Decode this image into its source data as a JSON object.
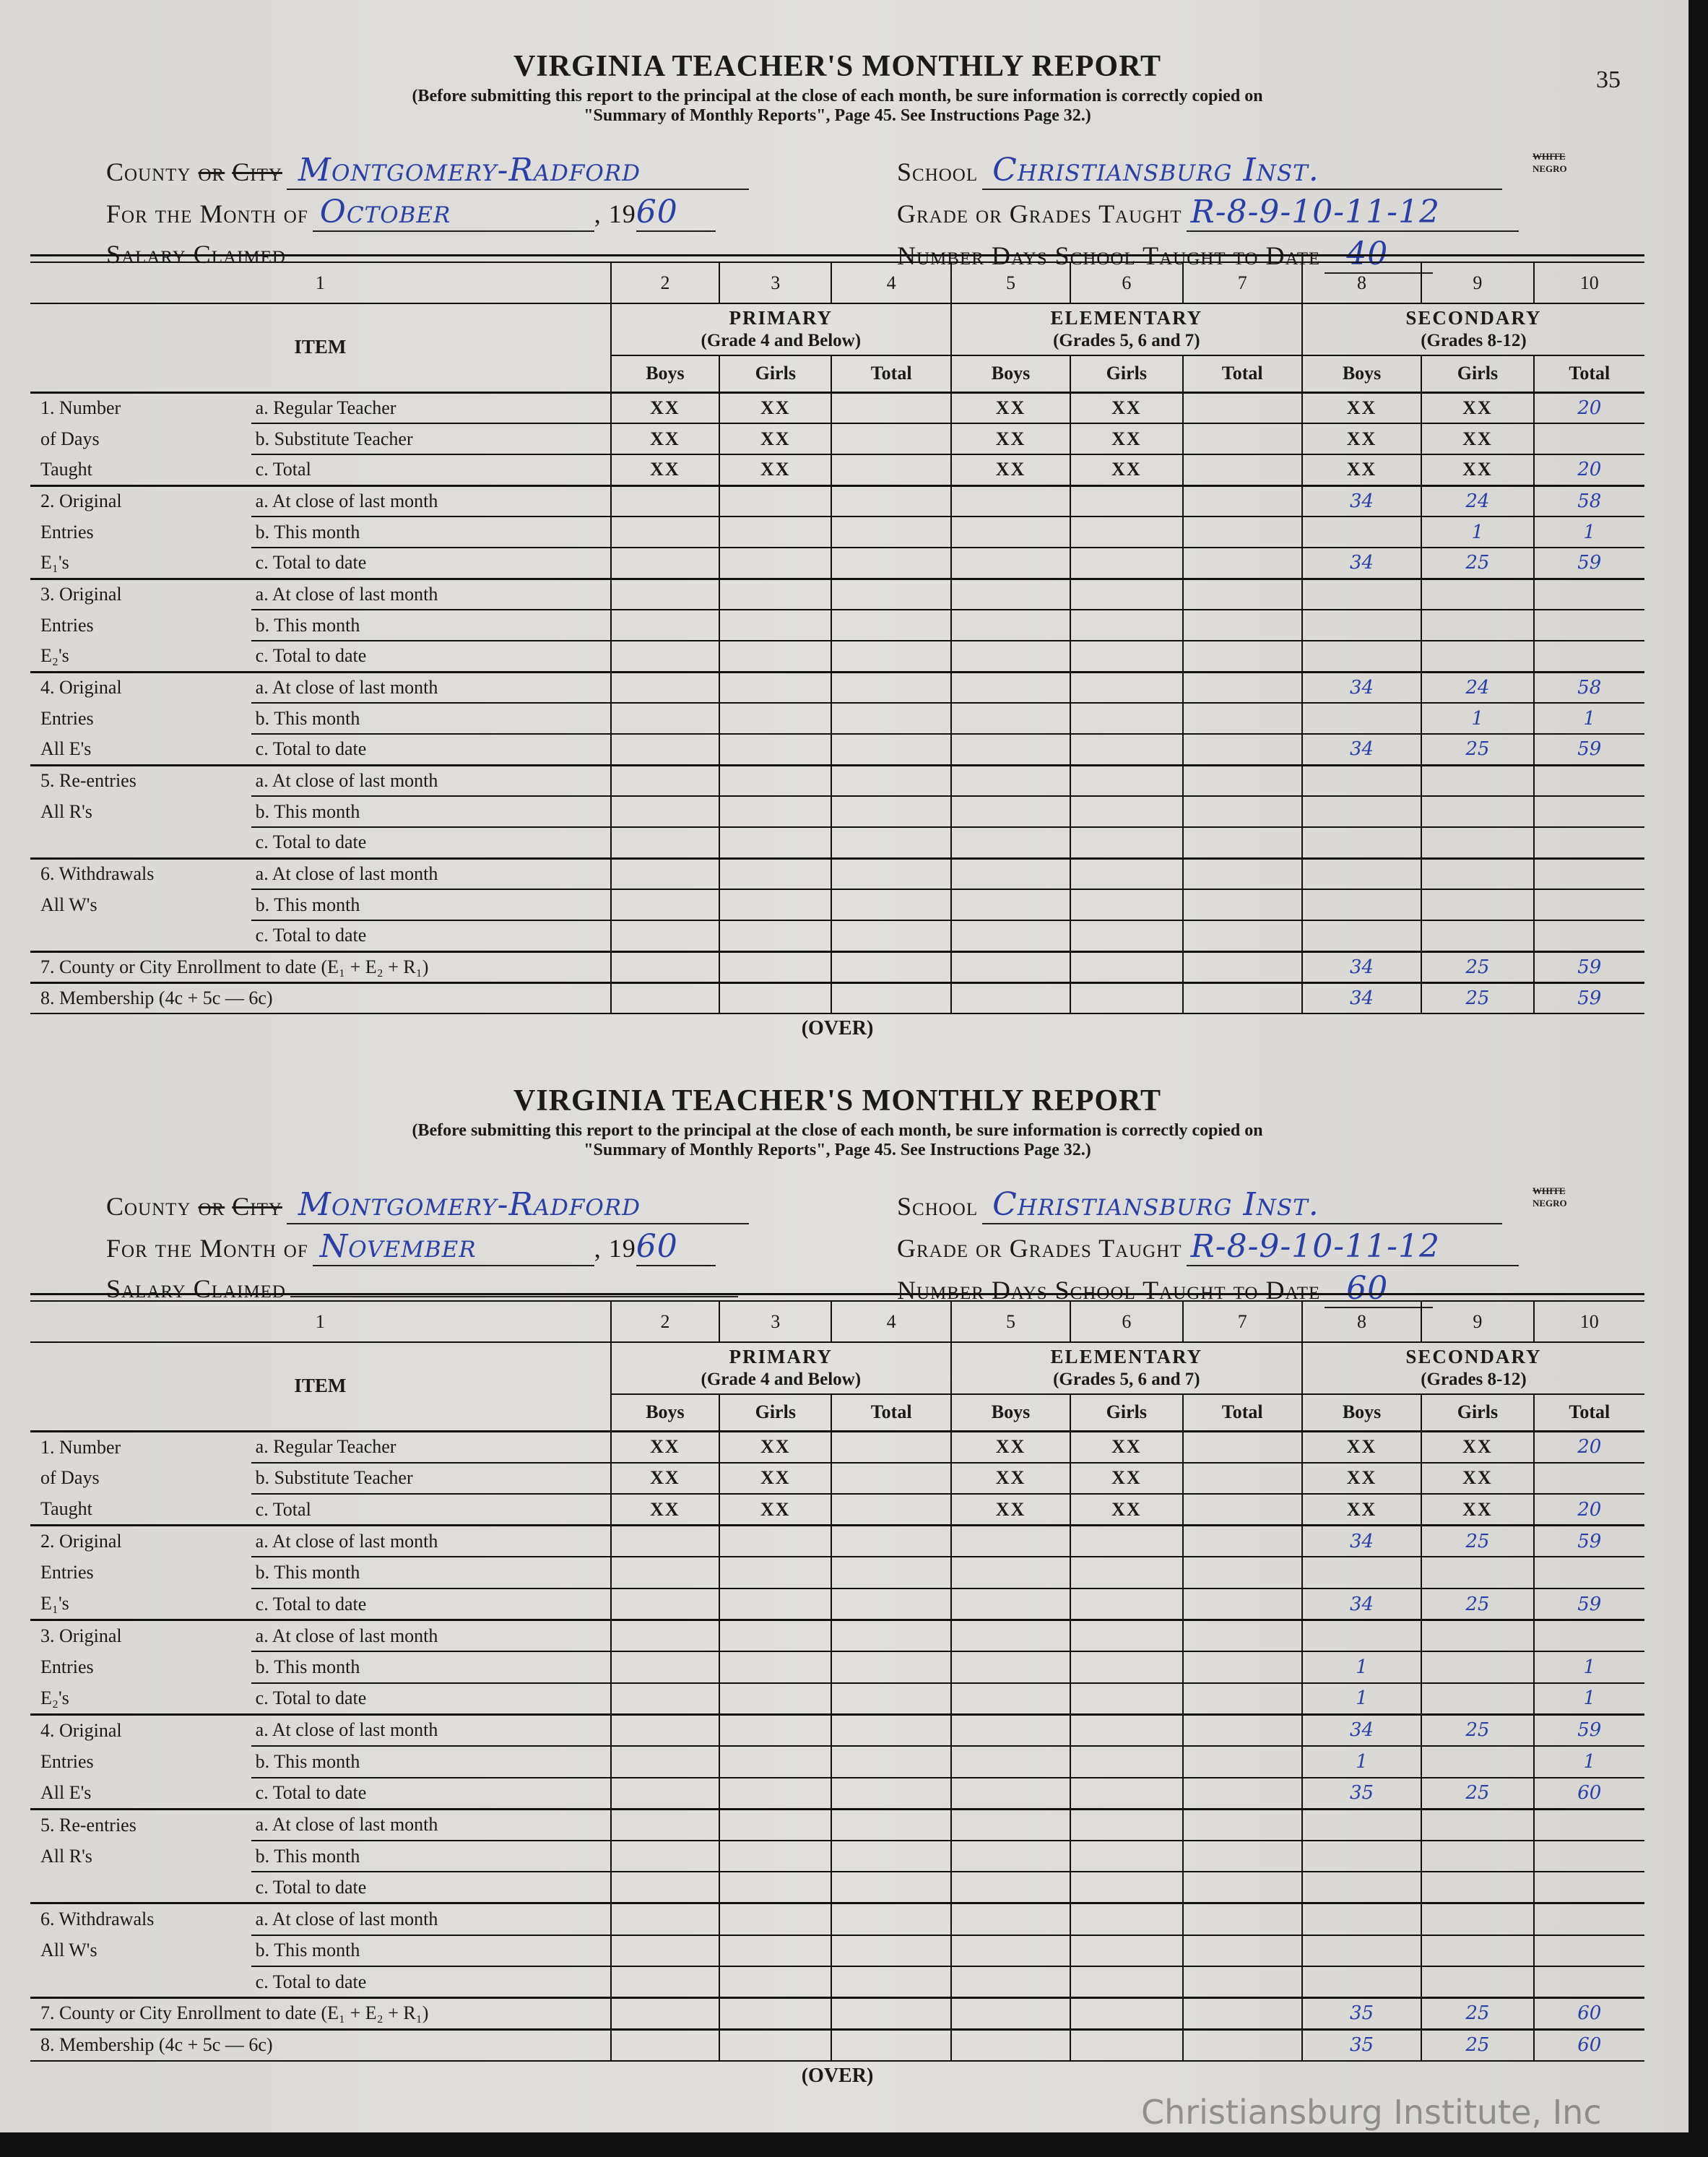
{
  "page_number": "35",
  "watermark": "Christiansburg Institute, Inc",
  "form": {
    "title": "VIRGINIA TEACHER'S MONTHLY REPORT",
    "subtitle_1": "(Before submitting this report to the principal at the close of each month, be sure information is correctly copied on",
    "subtitle_2": "\"Summary of Monthly Reports\", Page 45.  See Instructions Page 32.)",
    "county_label_a": "County",
    "county_label_or": "or",
    "county_label_city": "City",
    "month_label": "For the Month of",
    "year_prefix": "19",
    "salary_label": "Salary Claimed",
    "school_label": "School",
    "race_white": "WHITE",
    "race_negro": "NEGRO",
    "grade_label": "Grade or Grades Taught",
    "days_label": "Number Days School Taught to Date",
    "over": "(OVER)",
    "col_numbers": [
      "1",
      "2",
      "3",
      "4",
      "5",
      "6",
      "7",
      "8",
      "9",
      "10"
    ],
    "item_header": "ITEM",
    "groups": [
      {
        "name": "PRIMARY",
        "note": "(Grade 4 and Below)"
      },
      {
        "name": "ELEMENTARY",
        "note": "(Grades 5, 6 and 7)"
      },
      {
        "name": "SECONDARY",
        "note": "(Grades 8-12)"
      }
    ],
    "subcols": [
      "Boys",
      "Girls",
      "Total",
      "Boys",
      "Girls",
      "Total",
      "Boys",
      "Girls",
      "Total"
    ],
    "row_labels": [
      {
        "main": "1.  Number",
        "sub": "a.  Regular Teacher"
      },
      {
        "main": "of Days",
        "sub": "b.  Substitute Teacher"
      },
      {
        "main": "Taught",
        "sub": "c.  Total"
      },
      {
        "main": "2.  Original",
        "sub": "a.  At close of last month"
      },
      {
        "main": "Entries",
        "sub": "b.  This month"
      },
      {
        "main": "E₁'s",
        "sub": "c.  Total to date"
      },
      {
        "main": "3.  Original",
        "sub": "a.  At close of last month"
      },
      {
        "main": "Entries",
        "sub": "b.  This month"
      },
      {
        "main": "E₂'s",
        "sub": "c.  Total to date"
      },
      {
        "main": "4.  Original",
        "sub": "a.  At close of last month"
      },
      {
        "main": "Entries",
        "sub": "b.  This month"
      },
      {
        "main": "All E's",
        "sub": "c.  Total to date"
      },
      {
        "main": "5.  Re-entries",
        "sub": "a.  At close of last month"
      },
      {
        "main": "All R's",
        "sub": "b.  This month"
      },
      {
        "main": "",
        "sub": "c.  Total to date"
      },
      {
        "main": "6.  Withdrawals",
        "sub": "a.  At close of last month"
      },
      {
        "main": "All W's",
        "sub": "b.  This month"
      },
      {
        "main": "",
        "sub": "c.  Total to date"
      },
      {
        "main": "7.  County or City  Enrollment to date (E₁ + E₂ + R₁)",
        "sub": ""
      },
      {
        "main": "8.  Membership (4c + 5c — 6c)",
        "sub": ""
      }
    ]
  },
  "reports": [
    {
      "county": "Montgomery-Radford",
      "school": "Christiansburg Inst.",
      "month": "October",
      "year": "60",
      "salary": "",
      "grades": "R-8-9-10-11-12",
      "days": "40",
      "rows": [
        [
          "XX",
          "XX",
          "",
          "XX",
          "XX",
          "",
          "XX",
          "XX",
          "20"
        ],
        [
          "XX",
          "XX",
          "",
          "XX",
          "XX",
          "",
          "XX",
          "XX",
          ""
        ],
        [
          "XX",
          "XX",
          "",
          "XX",
          "XX",
          "",
          "XX",
          "XX",
          "20"
        ],
        [
          "",
          "",
          "",
          "",
          "",
          "",
          "34",
          "24",
          "58"
        ],
        [
          "",
          "",
          "",
          "",
          "",
          "",
          "",
          "1",
          "1"
        ],
        [
          "",
          "",
          "",
          "",
          "",
          "",
          "34",
          "25",
          "59"
        ],
        [
          "",
          "",
          "",
          "",
          "",
          "",
          "",
          "",
          ""
        ],
        [
          "",
          "",
          "",
          "",
          "",
          "",
          "",
          "",
          ""
        ],
        [
          "",
          "",
          "",
          "",
          "",
          "",
          "",
          "",
          ""
        ],
        [
          "",
          "",
          "",
          "",
          "",
          "",
          "34",
          "24",
          "58"
        ],
        [
          "",
          "",
          "",
          "",
          "",
          "",
          "",
          "1",
          "1"
        ],
        [
          "",
          "",
          "",
          "",
          "",
          "",
          "34",
          "25",
          "59"
        ],
        [
          "",
          "",
          "",
          "",
          "",
          "",
          "",
          "",
          ""
        ],
        [
          "",
          "",
          "",
          "",
          "",
          "",
          "",
          "",
          ""
        ],
        [
          "",
          "",
          "",
          "",
          "",
          "",
          "",
          "",
          ""
        ],
        [
          "",
          "",
          "",
          "",
          "",
          "",
          "",
          "",
          ""
        ],
        [
          "",
          "",
          "",
          "",
          "",
          "",
          "",
          "",
          ""
        ],
        [
          "",
          "",
          "",
          "",
          "",
          "",
          "",
          "",
          ""
        ],
        [
          "",
          "",
          "",
          "",
          "",
          "",
          "34",
          "25",
          "59"
        ],
        [
          "",
          "",
          "",
          "",
          "",
          "",
          "34",
          "25",
          "59"
        ]
      ]
    },
    {
      "county": "Montgomery-Radford",
      "school": "Christiansburg Inst.",
      "month": "November",
      "year": "60",
      "salary": "",
      "grades": "R-8-9-10-11-12",
      "days": "60",
      "rows": [
        [
          "XX",
          "XX",
          "",
          "XX",
          "XX",
          "",
          "XX",
          "XX",
          "20"
        ],
        [
          "XX",
          "XX",
          "",
          "XX",
          "XX",
          "",
          "XX",
          "XX",
          ""
        ],
        [
          "XX",
          "XX",
          "",
          "XX",
          "XX",
          "",
          "XX",
          "XX",
          "20"
        ],
        [
          "",
          "",
          "",
          "",
          "",
          "",
          "34",
          "25",
          "59"
        ],
        [
          "",
          "",
          "",
          "",
          "",
          "",
          "",
          "",
          ""
        ],
        [
          "",
          "",
          "",
          "",
          "",
          "",
          "34",
          "25",
          "59"
        ],
        [
          "",
          "",
          "",
          "",
          "",
          "",
          "",
          "",
          ""
        ],
        [
          "",
          "",
          "",
          "",
          "",
          "",
          "1",
          "",
          "1"
        ],
        [
          "",
          "",
          "",
          "",
          "",
          "",
          "1",
          "",
          "1"
        ],
        [
          "",
          "",
          "",
          "",
          "",
          "",
          "34",
          "25",
          "59"
        ],
        [
          "",
          "",
          "",
          "",
          "",
          "",
          "1",
          "",
          "1"
        ],
        [
          "",
          "",
          "",
          "",
          "",
          "",
          "35",
          "25",
          "60"
        ],
        [
          "",
          "",
          "",
          "",
          "",
          "",
          "",
          "",
          ""
        ],
        [
          "",
          "",
          "",
          "",
          "",
          "",
          "",
          "",
          ""
        ],
        [
          "",
          "",
          "",
          "",
          "",
          "",
          "",
          "",
          ""
        ],
        [
          "",
          "",
          "",
          "",
          "",
          "",
          "",
          "",
          ""
        ],
        [
          "",
          "",
          "",
          "",
          "",
          "",
          "",
          "",
          ""
        ],
        [
          "",
          "",
          "",
          "",
          "",
          "",
          "",
          "",
          ""
        ],
        [
          "",
          "",
          "",
          "",
          "",
          "",
          "35",
          "25",
          "60"
        ],
        [
          "",
          "",
          "",
          "",
          "",
          "",
          "35",
          "25",
          "60"
        ]
      ]
    }
  ]
}
